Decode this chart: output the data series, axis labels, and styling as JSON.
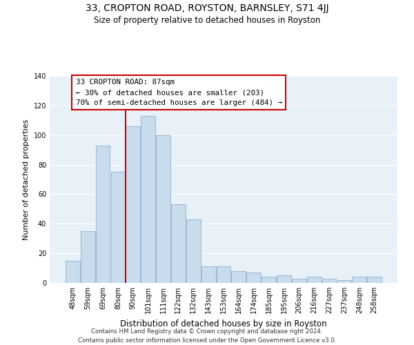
{
  "title": "33, CROPTON ROAD, ROYSTON, BARNSLEY, S71 4JJ",
  "subtitle": "Size of property relative to detached houses in Royston",
  "xlabel": "Distribution of detached houses by size in Royston",
  "ylabel": "Number of detached properties",
  "bar_color": "#c8dcee",
  "bar_edge_color": "#9ab8d0",
  "categories": [
    "48sqm",
    "59sqm",
    "69sqm",
    "80sqm",
    "90sqm",
    "101sqm",
    "111sqm",
    "122sqm",
    "132sqm",
    "143sqm",
    "153sqm",
    "164sqm",
    "174sqm",
    "185sqm",
    "195sqm",
    "206sqm",
    "216sqm",
    "227sqm",
    "237sqm",
    "248sqm",
    "258sqm"
  ],
  "values": [
    15,
    35,
    93,
    75,
    106,
    113,
    100,
    53,
    43,
    11,
    11,
    8,
    7,
    4,
    5,
    3,
    4,
    3,
    2,
    4,
    4
  ],
  "ylim": [
    0,
    140
  ],
  "yticks": [
    0,
    20,
    40,
    60,
    80,
    100,
    120,
    140
  ],
  "vline_index": 4,
  "property_label": "33 CROPTON ROAD: 87sqm",
  "annotation_line1": "← 30% of detached houses are smaller (203)",
  "annotation_line2": "70% of semi-detached houses are larger (484) →",
  "annotation_box_facecolor": "#ffffff",
  "annotation_box_edgecolor": "#cc0000",
  "vline_color": "#cc0000",
  "footer_line1": "Contains HM Land Registry data © Crown copyright and database right 2024.",
  "footer_line2": "Contains public sector information licensed under the Open Government Licence v3.0.",
  "background_color": "#ffffff",
  "plot_bg_color": "#e8f0f8"
}
